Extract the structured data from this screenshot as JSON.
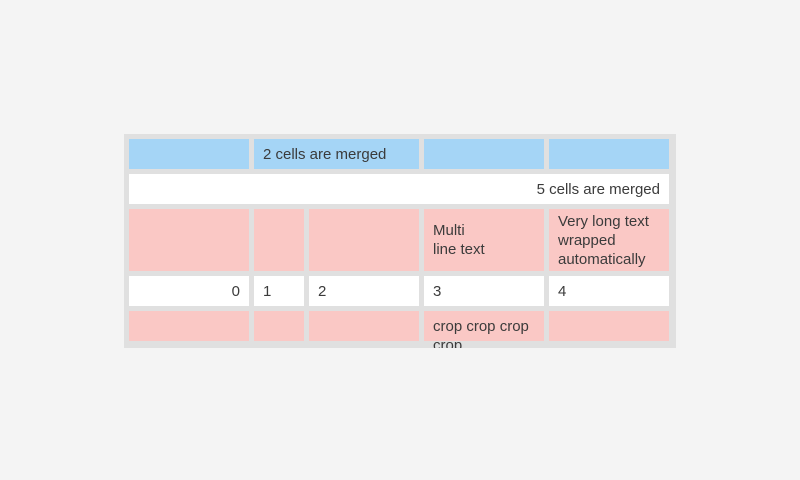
{
  "page": {
    "bg": "#f4f4f4"
  },
  "colors": {
    "table_bg": "#e0e0e0",
    "blue": "#a5d5f6",
    "pink": "#fac8c5",
    "white": "#ffffff",
    "text": "#3b3b3b"
  },
  "table": {
    "row1": {
      "cell1": "",
      "merged2": "2 cells are merged",
      "cell4": "",
      "cell5": ""
    },
    "row2": {
      "merged5": "5 cells are merged"
    },
    "row3": {
      "cell1": "",
      "cell2": "",
      "cell3": "",
      "cell4": "Multi\nline text",
      "cell5": "Very long text wrapped automatically"
    },
    "row4": {
      "cell1": "0",
      "cell2": "1",
      "cell3": "2",
      "cell4": "3",
      "cell5": "4"
    },
    "row5": {
      "cell1": "",
      "cell2": "",
      "cell3": "",
      "cell4": "crop crop crop crop",
      "cell5": ""
    }
  }
}
